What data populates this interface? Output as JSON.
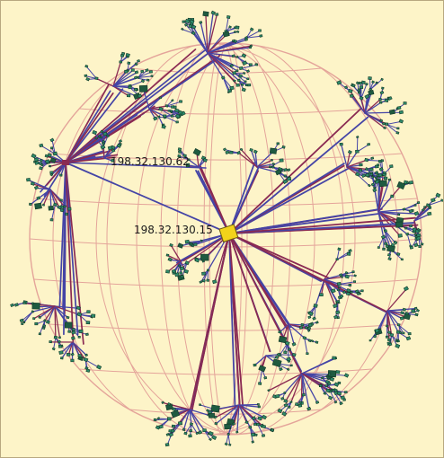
{
  "diagram": {
    "labels": {
      "root": "198.32.130.15",
      "secondary": "198.32.130.62"
    },
    "colors": {
      "background": "#fdf4c8",
      "grid": "#e4a49a",
      "edge_primary": "#4444a6",
      "edge_secondary": "#8a2a52",
      "leaf_node": "#2e8a6a",
      "cluster_node": "#1f5a40",
      "root_node": "#f2d31a"
    }
  }
}
